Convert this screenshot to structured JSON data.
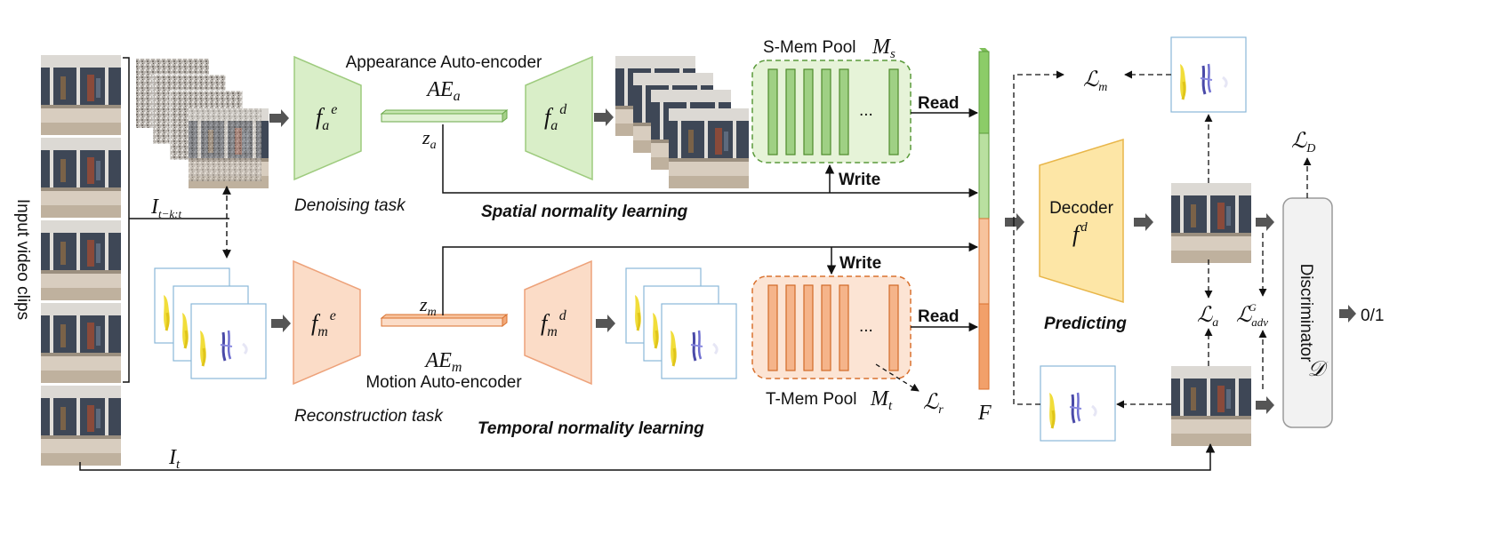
{
  "input": {
    "side_label": "Input video clips",
    "clip_symbol": "I",
    "clip_subscript": "t−k:t",
    "frame_symbol": "I",
    "frame_subscript": "t"
  },
  "appearance": {
    "title": "Appearance Auto-encoder",
    "ae_symbol": "AE",
    "ae_sub": "a",
    "enc_symbol": "f",
    "enc_sub": "a",
    "enc_sup": "e",
    "dec_symbol": "f",
    "dec_sub": "a",
    "dec_sup": "d",
    "latent_symbol": "z",
    "latent_sub": "a",
    "task": "Denoising task",
    "learning": "Spatial normality learning"
  },
  "motion": {
    "title": "Motion Auto-encoder",
    "ae_symbol": "AE",
    "ae_sub": "m",
    "enc_symbol": "f",
    "enc_sub": "m",
    "enc_sup": "e",
    "dec_symbol": "f",
    "dec_sub": "m",
    "dec_sup": "d",
    "latent_symbol": "z",
    "latent_sub": "m",
    "task": "Reconstruction task",
    "learning": "Temporal normality learning"
  },
  "smem": {
    "title": "S-Mem Pool",
    "symbol": "M",
    "sub": "s",
    "ellipsis": "...",
    "read": "Read",
    "write": "Write",
    "color_fill": "#e6f3d8",
    "color_stroke": "#5a9a3a",
    "slot_fill": "#9fd084"
  },
  "tmem": {
    "title": "T-Mem Pool",
    "symbol": "M",
    "sub": "t",
    "ellipsis": "...",
    "read": "Read",
    "write": "Write",
    "loss_symbol": "ℒ",
    "loss_sub": "r",
    "color_fill": "#fce4d4",
    "color_stroke": "#d9712f",
    "slot_fill": "#f5b48a"
  },
  "feature": {
    "symbol": "F"
  },
  "decoder": {
    "title": "Decoder",
    "symbol": "f",
    "sup": "d",
    "task": "Predicting",
    "color_fill": "#fde6a6",
    "color_stroke": "#e8b64a"
  },
  "losses": {
    "lm_symbol": "ℒ",
    "lm_sub": "m",
    "la_symbol": "ℒ",
    "la_sub": "a",
    "ladv_symbol": "ℒ",
    "ladv_sub": "adv",
    "ladv_sup": "G",
    "ld_symbol": "ℒ",
    "ld_sub": "D"
  },
  "discriminator": {
    "title": "Discriminator",
    "symbol": "𝒟",
    "output": "0/1"
  }
}
